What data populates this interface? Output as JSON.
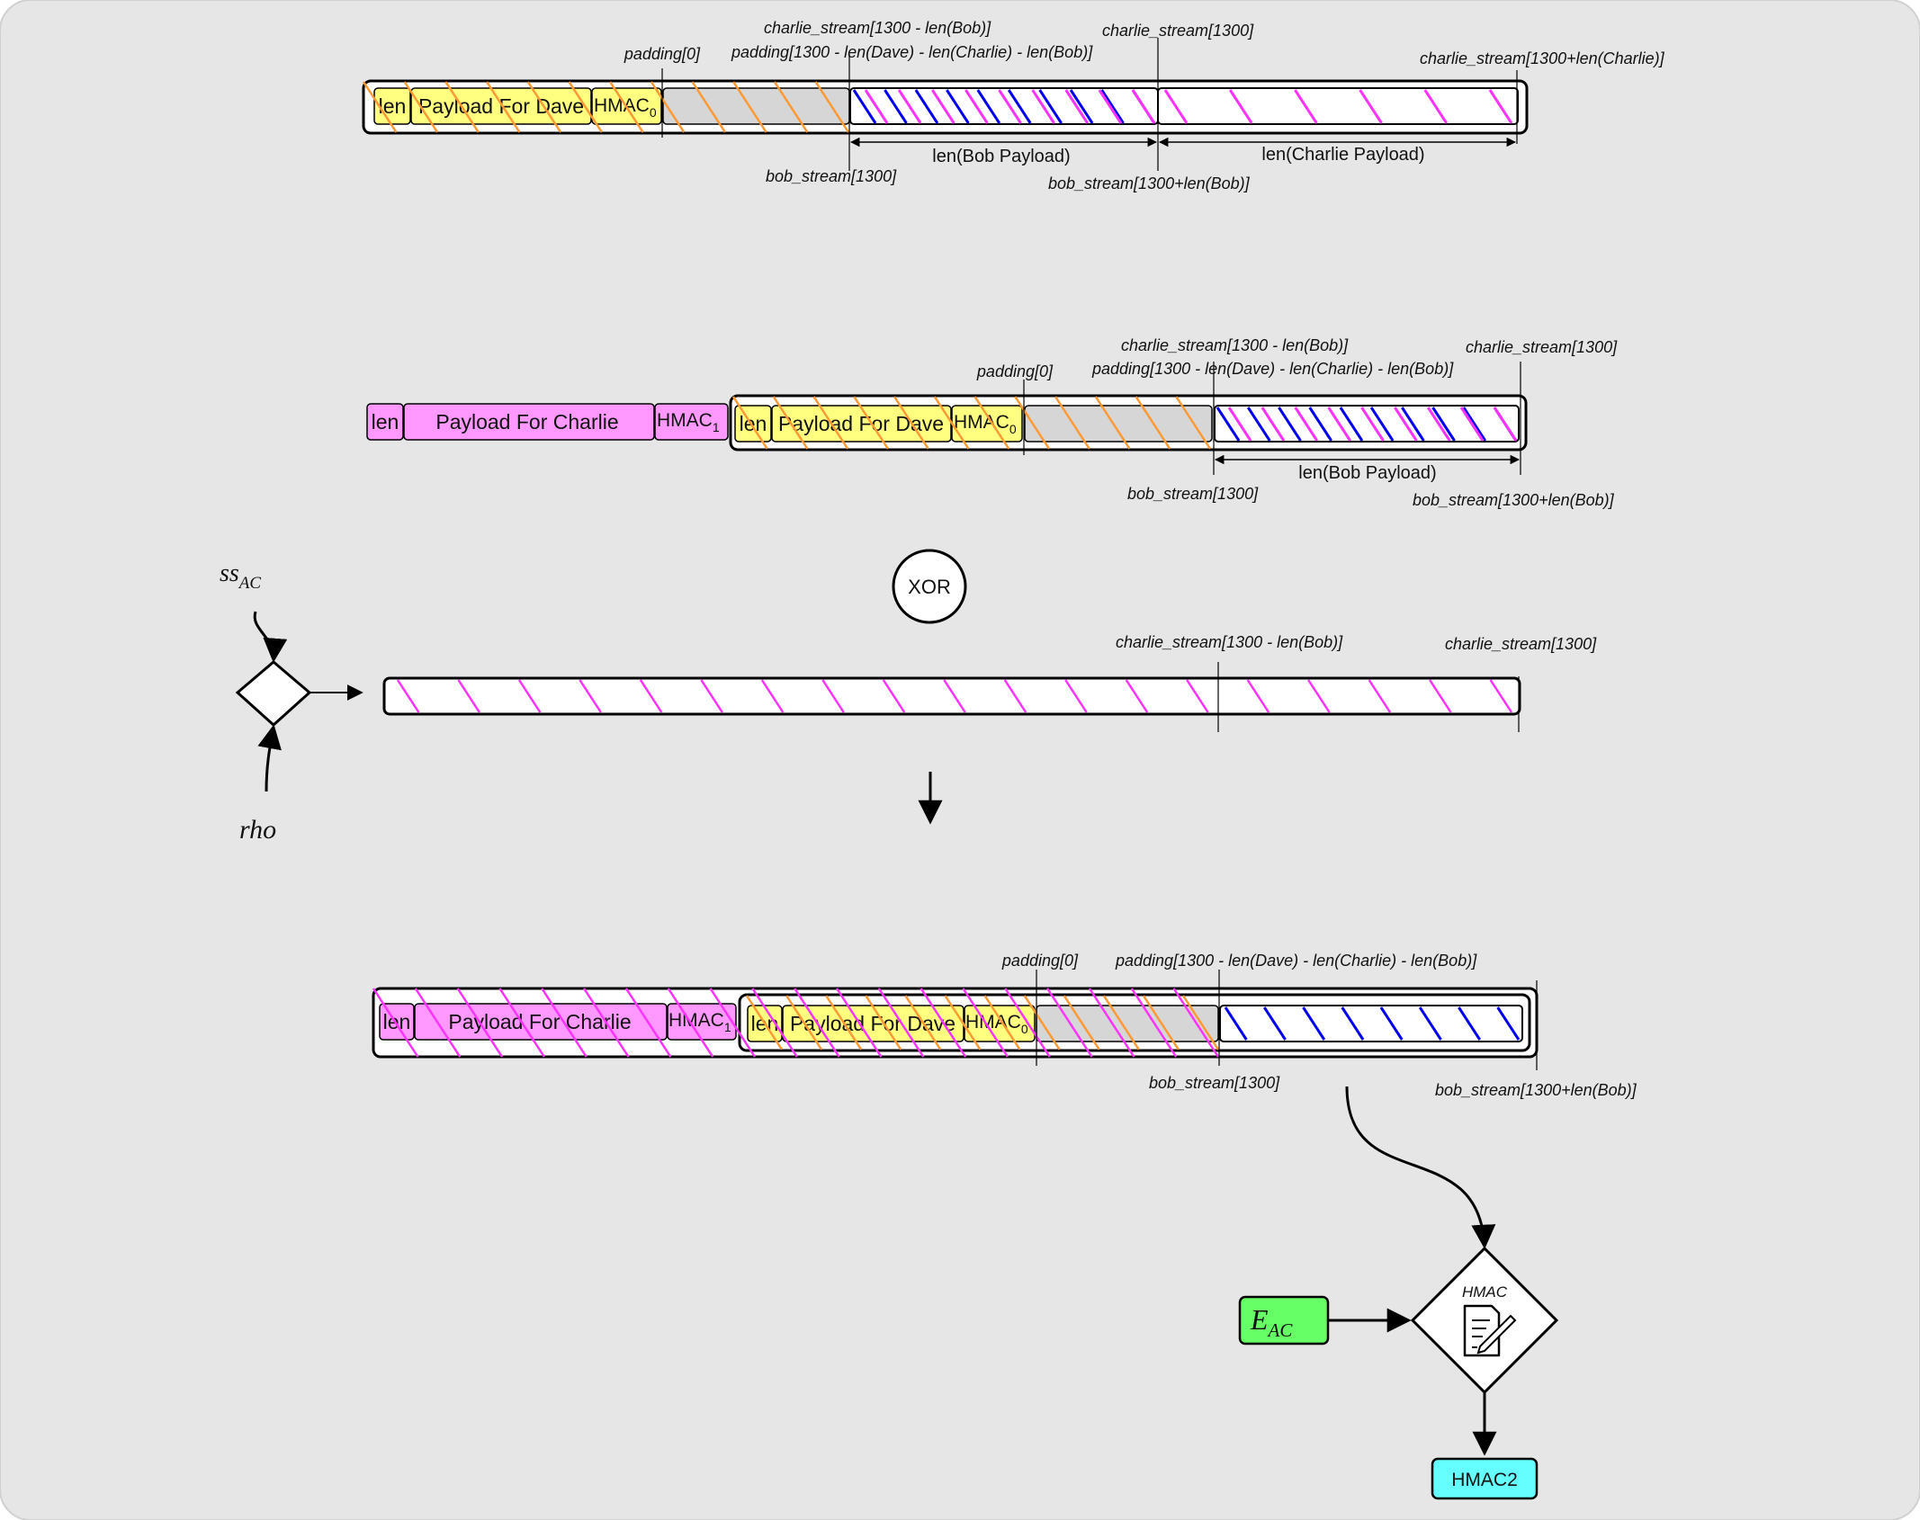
{
  "colors": {
    "background": "#e6e6e6",
    "dave_payload": "#ffff80",
    "charlie_payload": "#ff99ff",
    "padding": "#d6d6d6",
    "stripe_orange": "#ff9933",
    "stripe_magenta": "#ff33ff",
    "stripe_blue": "#0000ee",
    "e_ac_box": "#66ff66",
    "hmac2_box": "#66ffff"
  },
  "row1": {
    "cells": {
      "len": "len",
      "payload": "Payload For Dave",
      "hmac": "HMAC",
      "hmac_sub": "0"
    },
    "labels": {
      "padding0": "padding[0]",
      "charlie_stream_1300_minus_bob": "charlie_stream[1300 - len(Bob)]",
      "padding_1300_expr": "padding[1300 - len(Dave) - len(Charlie) - len(Bob)]",
      "charlie_stream_1300": "charlie_stream[1300]",
      "charlie_stream_1300_plus_charlie": "charlie_stream[1300+len(Charlie)]",
      "bob_stream_1300": "bob_stream[1300]",
      "bob_stream_1300_plus_bob": "bob_stream[1300+len(Bob)]"
    },
    "dims": {
      "bob_payload": "len(Bob Payload)",
      "charlie_payload": "len(Charlie Payload)"
    }
  },
  "row2": {
    "charlie_cells": {
      "len": "len",
      "payload": "Payload For Charlie",
      "hmac": "HMAC",
      "hmac_sub": "1"
    },
    "dave_cells": {
      "len": "len",
      "payload": "Payload For Dave",
      "hmac": "HMAC",
      "hmac_sub": "0"
    },
    "labels": {
      "padding0": "padding[0]",
      "charlie_stream_1300_minus_bob": "charlie_stream[1300 - len(Bob)]",
      "padding_1300_expr": "padding[1300 - len(Dave) - len(Charlie) - len(Bob)]",
      "charlie_stream_1300": "charlie_stream[1300]",
      "bob_stream_1300": "bob_stream[1300]",
      "bob_stream_1300_plus_bob": "bob_stream[1300+len(Bob)]"
    },
    "dims": {
      "bob_payload": "len(Bob Payload)"
    }
  },
  "xor_label": "XOR",
  "stream_generator": {
    "input_top": "ss",
    "input_top_sub": "AC",
    "input_bottom": "rho"
  },
  "row3": {
    "labels": {
      "charlie_stream_1300_minus_bob": "charlie_stream[1300 - len(Bob)]",
      "charlie_stream_1300": "charlie_stream[1300]"
    }
  },
  "row4": {
    "charlie_cells": {
      "len": "len",
      "payload": "Payload For Charlie",
      "hmac": "HMAC",
      "hmac_sub": "1"
    },
    "dave_cells": {
      "len": "len",
      "payload": "Payload For Dave",
      "hmac": "HMAC",
      "hmac_sub": "0"
    },
    "labels": {
      "padding0": "padding[0]",
      "padding_1300_expr": "padding[1300 - len(Dave) - len(Charlie) - len(Bob)]",
      "bob_stream_1300": "bob_stream[1300]",
      "bob_stream_1300_plus_bob": "bob_stream[1300+len(Bob)]"
    }
  },
  "hmac_section": {
    "e_ac_main": "E",
    "e_ac_sub": "AC",
    "hmac_title": "HMAC",
    "hmac2_label": "HMAC2"
  }
}
